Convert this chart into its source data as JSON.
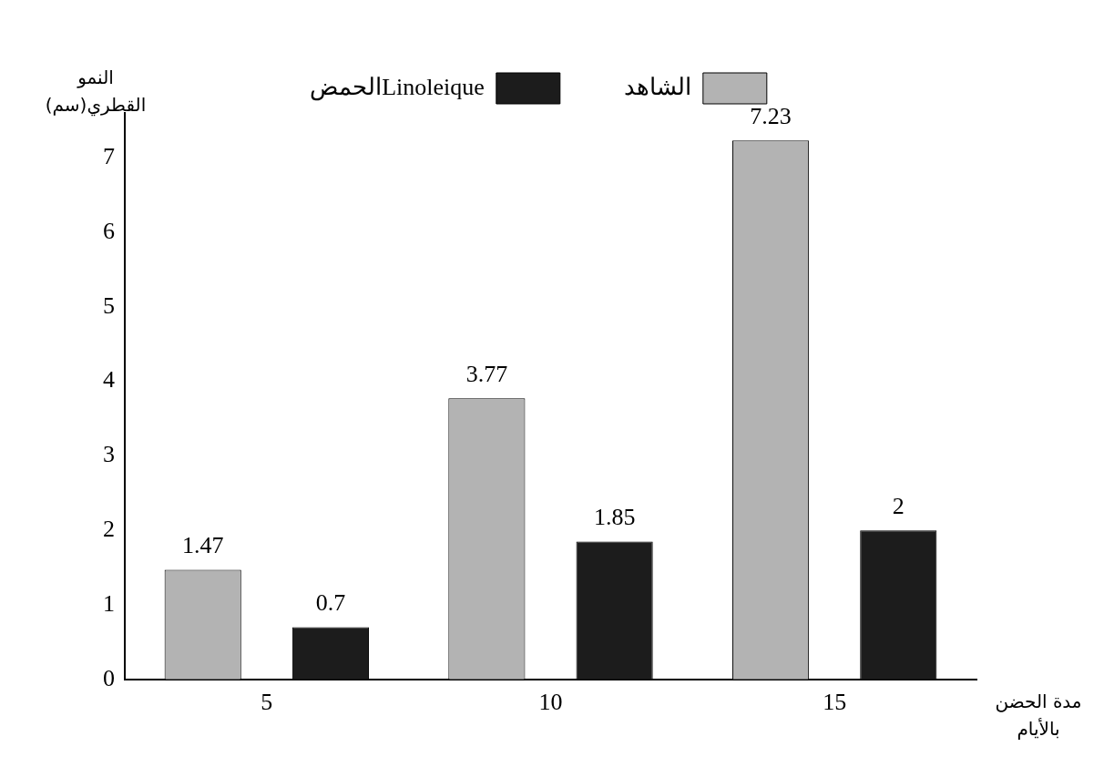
{
  "chart_data": {
    "type": "bar",
    "ylabel": "النمو القطري(سم)",
    "xlabel": "مدة الحضن بالأيام",
    "categories": [
      "5",
      "10",
      "15"
    ],
    "series": [
      {
        "name": "الشاهد",
        "color": "#b3b3b3",
        "values": [
          1.47,
          3.77,
          7.23
        ]
      },
      {
        "name": "الحمضLinoleique",
        "color": "#1c1c1c",
        "values": [
          0.7,
          1.85,
          2
        ]
      }
    ],
    "ylim": [
      0,
      7.6
    ],
    "yticks": [
      0,
      1,
      2,
      3,
      4,
      5,
      6,
      7
    ],
    "grid": false,
    "legend": "top",
    "data_labels": true
  }
}
